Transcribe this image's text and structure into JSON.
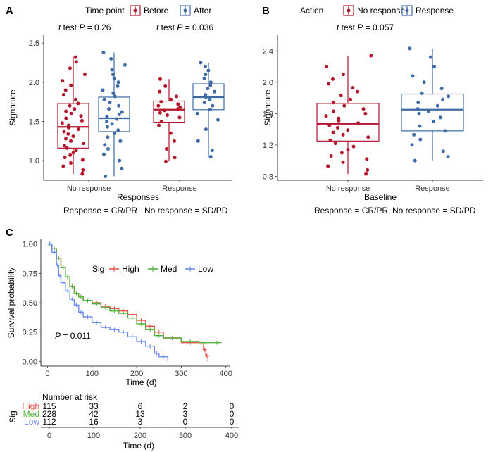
{
  "colors": {
    "before": "#b5152b",
    "after": "#3f6aa6",
    "no_response": "#b5152b",
    "response": "#3f6aa6",
    "high": "#e2574c",
    "med": "#54b33e",
    "low": "#6a8df0"
  },
  "chart_data": [
    {
      "panel": "A",
      "type": "boxplot",
      "ylabel": "Signature",
      "xlabel": "Responses",
      "categories": [
        "No response",
        "Response"
      ],
      "yticks": [
        1.0,
        1.5,
        2.0,
        2.5
      ],
      "ytick_labels": [
        "1.0",
        "1.5",
        "2.0",
        "2.5"
      ],
      "ylim": [
        0.75,
        2.6
      ],
      "legend_title": "Time point",
      "legend_labels": [
        "Before",
        "After"
      ],
      "tests": [
        {
          "label": "t test",
          "p_label": "P",
          "p_value": "= 0.26"
        },
        {
          "label": "t test",
          "p_label": "P",
          "p_value": "= 0.036"
        }
      ],
      "footnote_left": "Response = CR/PR",
      "footnote_right": "No response = SD/PD",
      "series": [
        {
          "name": "Before",
          "group": "No response",
          "min": 0.83,
          "q1": 1.16,
          "median": 1.43,
          "q3": 1.73,
          "max": 2.32,
          "points": [
            0.83,
            0.88,
            0.93,
            0.97,
            1.01,
            1.04,
            1.07,
            1.1,
            1.13,
            1.16,
            1.19,
            1.22,
            1.25,
            1.28,
            1.31,
            1.34,
            1.37,
            1.4,
            1.42,
            1.45,
            1.48,
            1.51,
            1.54,
            1.57,
            1.6,
            1.63,
            1.66,
            1.7,
            1.73,
            1.78,
            1.84,
            1.9,
            1.96,
            2.02,
            2.1,
            2.18,
            2.26,
            2.32
          ]
        },
        {
          "name": "After",
          "group": "No response",
          "min": 0.8,
          "q1": 1.37,
          "median": 1.54,
          "q3": 1.81,
          "max": 2.38,
          "points": [
            0.8,
            0.9,
            1.0,
            1.08,
            1.15,
            1.2,
            1.25,
            1.3,
            1.35,
            1.39,
            1.43,
            1.47,
            1.5,
            1.53,
            1.56,
            1.59,
            1.62,
            1.66,
            1.7,
            1.74,
            1.78,
            1.82,
            1.86,
            1.9,
            1.95,
            2.0,
            2.05,
            2.1,
            2.16,
            2.22,
            2.3,
            2.38
          ]
        },
        {
          "name": "Before",
          "group": "Response",
          "min": 0.99,
          "q1": 1.49,
          "median": 1.65,
          "q3": 1.76,
          "max": 2.04,
          "points": [
            0.99,
            1.04,
            1.15,
            1.25,
            1.35,
            1.45,
            1.5,
            1.55,
            1.58,
            1.61,
            1.64,
            1.66,
            1.68,
            1.7,
            1.72,
            1.75,
            1.78,
            1.82,
            1.88,
            1.95,
            2.04
          ]
        },
        {
          "name": "After",
          "group": "Response",
          "min": 1.05,
          "q1": 1.65,
          "median": 1.81,
          "q3": 1.98,
          "max": 2.25,
          "points": [
            1.05,
            1.13,
            1.25,
            1.4,
            1.52,
            1.6,
            1.65,
            1.7,
            1.74,
            1.78,
            1.81,
            1.84,
            1.88,
            1.92,
            1.96,
            2.0,
            2.05,
            2.1,
            2.15,
            2.2,
            2.25
          ]
        }
      ]
    },
    {
      "panel": "B",
      "type": "boxplot",
      "ylabel": "Signature",
      "xlabel": "Baseline",
      "categories": [
        "No response",
        "Response"
      ],
      "yticks": [
        0.8,
        1.2,
        1.6,
        2.0,
        2.4
      ],
      "ytick_labels": [
        "0.8",
        "1.2",
        "1.6",
        "2.0",
        "2.4"
      ],
      "ylim": [
        0.75,
        2.6
      ],
      "legend_title": "Action",
      "legend_labels": [
        "No response",
        "Response"
      ],
      "tests": [
        {
          "label": "t test",
          "p_label": "P",
          "p_value": "= 0.057"
        }
      ],
      "footnote_left": "Response = CR/PR",
      "footnote_right": "No response = SD/PD",
      "series": [
        {
          "name": "No response",
          "group": "No response",
          "min": 0.83,
          "q1": 1.25,
          "median": 1.47,
          "q3": 1.73,
          "max": 2.34,
          "points": [
            0.83,
            0.88,
            0.93,
            0.98,
            1.02,
            1.06,
            1.1,
            1.14,
            1.18,
            1.22,
            1.26,
            1.3,
            1.33,
            1.36,
            1.39,
            1.42,
            1.45,
            1.48,
            1.51,
            1.54,
            1.57,
            1.6,
            1.63,
            1.66,
            1.7,
            1.74,
            1.78,
            1.83,
            1.88,
            1.93,
            1.98,
            2.04,
            2.1,
            2.2,
            2.34
          ]
        },
        {
          "name": "Response",
          "group": "Response",
          "min": 1.0,
          "q1": 1.38,
          "median": 1.65,
          "q3": 1.85,
          "max": 2.43,
          "points": [
            1.0,
            1.05,
            1.12,
            1.2,
            1.27,
            1.33,
            1.38,
            1.44,
            1.5,
            1.55,
            1.6,
            1.63,
            1.66,
            1.7,
            1.74,
            1.78,
            1.82,
            1.86,
            1.92,
            2.0,
            2.08,
            2.2,
            2.32,
            2.43
          ]
        }
      ]
    },
    {
      "panel": "C",
      "type": "line",
      "ylabel": "Survival probability",
      "xlabel": "Time (d)",
      "xticks": [
        0,
        100,
        200,
        300,
        400
      ],
      "yticks": [
        0.0,
        0.25,
        0.5,
        0.75,
        1.0
      ],
      "ytick_labels": [
        "0.00",
        "0.25",
        "0.50",
        "0.75",
        "1.00"
      ],
      "xlim": [
        -15,
        410
      ],
      "ylim": [
        -0.04,
        1.04
      ],
      "legend_title": "Sig",
      "legend_labels": [
        "High",
        "Med",
        "Low"
      ],
      "p_label": "P",
      "p_value": "= 0.011",
      "series": [
        {
          "name": "High",
          "x": [
            0,
            10,
            20,
            30,
            40,
            50,
            60,
            70,
            80,
            100,
            120,
            140,
            160,
            180,
            200,
            220,
            240,
            260,
            300,
            340,
            350,
            355,
            360
          ],
          "y": [
            1.0,
            0.96,
            0.88,
            0.8,
            0.72,
            0.64,
            0.58,
            0.55,
            0.52,
            0.5,
            0.47,
            0.45,
            0.43,
            0.4,
            0.35,
            0.3,
            0.25,
            0.2,
            0.16,
            0.16,
            0.1,
            0.05,
            0.0
          ]
        },
        {
          "name": "Med",
          "x": [
            0,
            10,
            20,
            30,
            40,
            50,
            60,
            70,
            80,
            100,
            120,
            140,
            160,
            180,
            200,
            220,
            240,
            260,
            300,
            340,
            370,
            390
          ],
          "y": [
            1.0,
            0.96,
            0.88,
            0.8,
            0.72,
            0.64,
            0.58,
            0.55,
            0.52,
            0.49,
            0.46,
            0.43,
            0.41,
            0.37,
            0.32,
            0.27,
            0.22,
            0.2,
            0.17,
            0.16,
            0.16,
            0.16
          ]
        },
        {
          "name": "Low",
          "x": [
            0,
            10,
            20,
            25,
            30,
            40,
            50,
            60,
            70,
            80,
            100,
            120,
            140,
            160,
            180,
            200,
            220,
            240,
            250,
            270
          ],
          "y": [
            1.0,
            0.93,
            0.82,
            0.73,
            0.67,
            0.6,
            0.53,
            0.48,
            0.42,
            0.38,
            0.33,
            0.29,
            0.27,
            0.25,
            0.21,
            0.17,
            0.13,
            0.07,
            0.04,
            0.0
          ]
        }
      ]
    }
  ],
  "risk_table": {
    "title": "Number at risk",
    "ylabel": "Sig",
    "xlabel": "Time (d)",
    "xticks": [
      0,
      100,
      200,
      300,
      400
    ],
    "rows": [
      {
        "name": "High",
        "counts": [
          "115",
          "33",
          "6",
          "2",
          "0"
        ]
      },
      {
        "name": "Med",
        "counts": [
          "228",
          "42",
          "13",
          "3",
          "0"
        ]
      },
      {
        "name": "Low",
        "counts": [
          "112",
          "16",
          "3",
          "0",
          "0"
        ]
      }
    ]
  },
  "labels": {
    "panel_a": "A",
    "panel_b": "B",
    "panel_c": "C"
  }
}
